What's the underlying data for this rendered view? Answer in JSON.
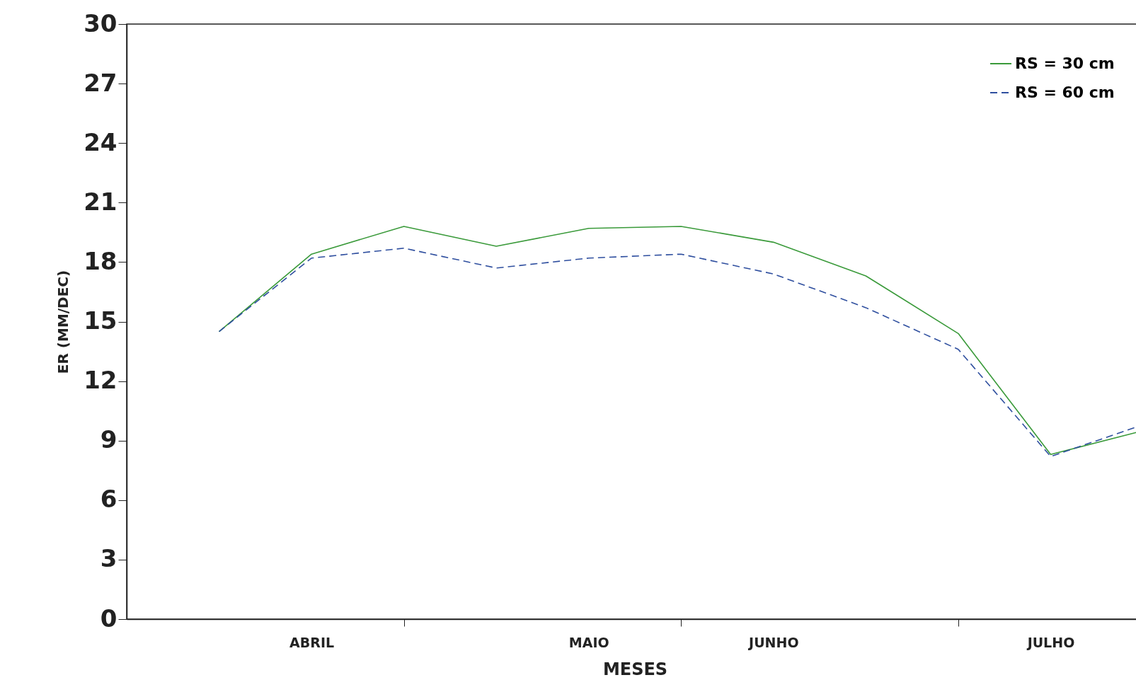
{
  "chart_data": {
    "type": "line",
    "xlabel": "MESES",
    "ylabel": "ER (MM/DEC)",
    "categories": [
      null,
      "ABRIL",
      null,
      null,
      "MAIO",
      null,
      "JUNHO",
      null,
      null,
      "JULHO",
      null
    ],
    "ylim": [
      0,
      30
    ],
    "yticks": [
      0,
      3,
      6,
      9,
      12,
      15,
      18,
      21,
      24,
      27,
      30
    ],
    "series": [
      {
        "name": "RS = 30 cm",
        "color": "#3a9a3a",
        "line_style": "solid",
        "values": [
          14.5,
          18.4,
          19.8,
          18.8,
          19.7,
          19.8,
          19.0,
          17.3,
          14.4,
          8.3,
          9.5
        ]
      },
      {
        "name": "RS = 60 cm",
        "color": "#2f4f9f",
        "line_style": "dashed",
        "values": [
          14.5,
          18.2,
          18.7,
          17.7,
          18.2,
          18.4,
          17.4,
          15.7,
          13.6,
          8.2,
          9.8
        ]
      }
    ],
    "legend": "top right",
    "grid": false,
    "marker": "none"
  }
}
